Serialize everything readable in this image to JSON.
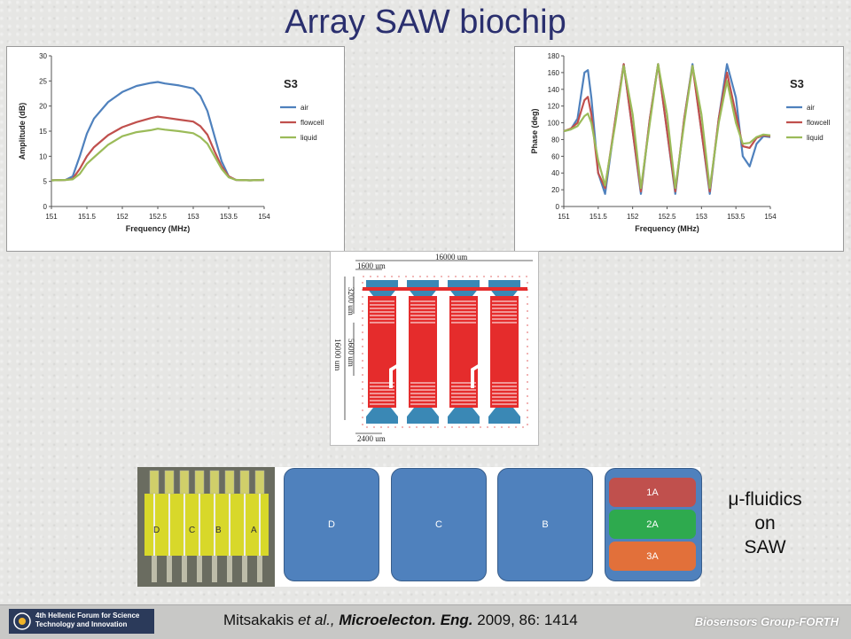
{
  "title": "Array SAW biochip",
  "fluidics_caption": [
    "μ-fluidics",
    "on",
    "SAW"
  ],
  "zones": {
    "d": "D",
    "c": "C",
    "b": "B",
    "a_subzones": [
      "1A",
      "2A",
      "3A"
    ]
  },
  "photo_labels": [
    "D",
    "C",
    "B",
    "A"
  ],
  "layout": {
    "width_label": "16000 um",
    "left_offset_label": "1600 um",
    "height_label": "16000 um",
    "segment1_label": "3200 um",
    "segment2_label": "5600 um",
    "bottom_label": "2400 um"
  },
  "footer": {
    "logo_line1": "4th Hellenic Forum for Science",
    "logo_line2": "Technology and Innovation",
    "citation_authors": "Mitsakakis ",
    "citation_etal": "et al.,",
    "citation_journal": " Microelecton. Eng.",
    "citation_rest": " 2009, 86: 1414",
    "group": "Biosensors Group-FORTH"
  },
  "colors": {
    "air": "#4f81bd",
    "flowcell": "#c0504d",
    "liquid": "#9bbb59",
    "zone_blue": "#4f81bd",
    "zone_red": "#c0504d",
    "zone_green": "#2eaa4e",
    "zone_orange": "#e2703a",
    "title": "#2a2f6e"
  },
  "chart_data": [
    {
      "type": "line",
      "title": "S3",
      "xlabel": "Frequency (MHz)",
      "ylabel": "Amplitude (dB)",
      "xlim": [
        151,
        154
      ],
      "ylim": [
        0,
        30
      ],
      "xticks": [
        "151",
        "151.5",
        "152",
        "152.5",
        "153",
        "153.5",
        "154"
      ],
      "yticks": [
        "0",
        "5",
        "10",
        "15",
        "20",
        "25",
        "30"
      ],
      "x": [
        151,
        151.2,
        151.3,
        151.4,
        151.5,
        151.6,
        151.8,
        152,
        152.2,
        152.4,
        152.5,
        152.6,
        152.8,
        153,
        153.1,
        153.2,
        153.3,
        153.4,
        153.5,
        153.6,
        153.8,
        154
      ],
      "series": [
        {
          "name": "air",
          "values": [
            5.2,
            5.3,
            6,
            10,
            14.5,
            17.5,
            20.8,
            22.8,
            24,
            24.6,
            24.8,
            24.5,
            24.1,
            23.5,
            22,
            19,
            14,
            9,
            6,
            5.3,
            5.2,
            5.3
          ]
        },
        {
          "name": "flowcell",
          "values": [
            5.2,
            5.3,
            5.5,
            7.5,
            10,
            11.8,
            14.2,
            15.8,
            16.8,
            17.6,
            17.9,
            17.7,
            17.3,
            16.9,
            16,
            14.3,
            11,
            8,
            6,
            5.3,
            5.2,
            5.3
          ]
        },
        {
          "name": "liquid",
          "values": [
            5.2,
            5.3,
            5.4,
            6.5,
            8.5,
            9.8,
            12.3,
            14,
            14.8,
            15.2,
            15.5,
            15.3,
            15,
            14.6,
            13.8,
            12.5,
            10,
            7.5,
            5.8,
            5.3,
            5.2,
            5.3
          ]
        }
      ],
      "legend": "right"
    },
    {
      "type": "line",
      "title": "S3",
      "xlabel": "Frequency (MHz)",
      "ylabel": "Phase (deg)",
      "xlim": [
        151,
        154
      ],
      "ylim": [
        0,
        180
      ],
      "xticks": [
        "151",
        "151.5",
        "152",
        "152.5",
        "153",
        "153.5",
        "154"
      ],
      "yticks": [
        "0",
        "20",
        "40",
        "60",
        "80",
        "100",
        "120",
        "140",
        "160",
        "180"
      ],
      "x": [
        151,
        151.1,
        151.2,
        151.3,
        151.35,
        151.4,
        151.5,
        151.6,
        151.75,
        151.87,
        152,
        152.12,
        152.25,
        152.37,
        152.5,
        152.62,
        152.75,
        152.87,
        153,
        153.12,
        153.25,
        153.37,
        153.5,
        153.6,
        153.7,
        153.8,
        153.9,
        154
      ],
      "series": [
        {
          "name": "air",
          "values": [
            90,
            92,
            105,
            160,
            163,
            130,
            40,
            15,
            105,
            170,
            90,
            15,
            105,
            170,
            90,
            15,
            105,
            170,
            90,
            15,
            105,
            170,
            130,
            60,
            48,
            75,
            84,
            83
          ]
        },
        {
          "name": "flowcell",
          "values": [
            90,
            93,
            100,
            127,
            131,
            110,
            40,
            22,
            105,
            170,
            90,
            18,
            105,
            170,
            90,
            18,
            105,
            168,
            90,
            18,
            105,
            160,
            110,
            72,
            70,
            82,
            85,
            84
          ]
        },
        {
          "name": "liquid",
          "values": [
            90,
            92,
            96,
            108,
            111,
            100,
            55,
            25,
            100,
            168,
            110,
            22,
            100,
            170,
            110,
            22,
            100,
            168,
            110,
            22,
            100,
            150,
            100,
            75,
            76,
            83,
            86,
            85
          ]
        }
      ],
      "legend": "right"
    }
  ]
}
